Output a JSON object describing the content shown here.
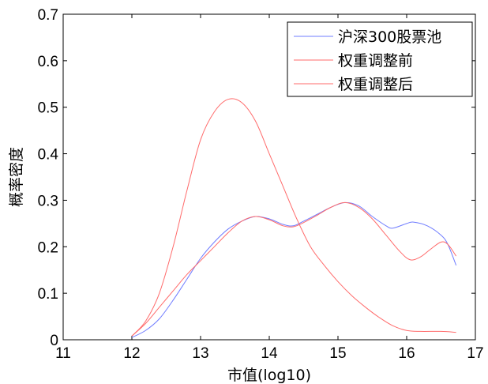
{
  "chart_data": {
    "type": "line",
    "title": "",
    "xlabel": "市值(log10)",
    "ylabel": "概率密度",
    "xlim": [
      11,
      17
    ],
    "ylim": [
      0,
      0.7
    ],
    "xticks": [
      "11",
      "12",
      "13",
      "14",
      "15",
      "16",
      "17"
    ],
    "yticks": [
      "0",
      "0.1",
      "0.2",
      "0.3",
      "0.4",
      "0.5",
      "0.6",
      "0.7"
    ],
    "grid": false,
    "legend_position": "top-right",
    "series": [
      {
        "name": "沪深300股票池",
        "color": "#6f7cff",
        "points": [
          [
            12.0,
            0.005
          ],
          [
            12.2,
            0.02
          ],
          [
            12.4,
            0.045
          ],
          [
            12.6,
            0.085
          ],
          [
            12.8,
            0.13
          ],
          [
            13.0,
            0.175
          ],
          [
            13.2,
            0.21
          ],
          [
            13.4,
            0.238
          ],
          [
            13.6,
            0.255
          ],
          [
            13.8,
            0.265
          ],
          [
            14.0,
            0.26
          ],
          [
            14.2,
            0.248
          ],
          [
            14.35,
            0.245
          ],
          [
            14.5,
            0.255
          ],
          [
            14.7,
            0.27
          ],
          [
            14.9,
            0.285
          ],
          [
            15.1,
            0.295
          ],
          [
            15.3,
            0.288
          ],
          [
            15.5,
            0.265
          ],
          [
            15.7,
            0.245
          ],
          [
            15.8,
            0.24
          ],
          [
            16.0,
            0.25
          ],
          [
            16.1,
            0.253
          ],
          [
            16.3,
            0.245
          ],
          [
            16.5,
            0.225
          ],
          [
            16.6,
            0.205
          ],
          [
            16.72,
            0.16
          ]
        ]
      },
      {
        "name": "权重调整前",
        "color": "#ff6b6b",
        "points": [
          [
            12.0,
            0.008
          ],
          [
            12.2,
            0.04
          ],
          [
            12.4,
            0.1
          ],
          [
            12.6,
            0.2
          ],
          [
            12.8,
            0.32
          ],
          [
            13.0,
            0.43
          ],
          [
            13.2,
            0.49
          ],
          [
            13.4,
            0.517
          ],
          [
            13.6,
            0.51
          ],
          [
            13.8,
            0.47
          ],
          [
            14.0,
            0.4
          ],
          [
            14.2,
            0.33
          ],
          [
            14.4,
            0.26
          ],
          [
            14.6,
            0.2
          ],
          [
            14.8,
            0.16
          ],
          [
            15.0,
            0.125
          ],
          [
            15.2,
            0.095
          ],
          [
            15.4,
            0.07
          ],
          [
            15.6,
            0.048
          ],
          [
            15.8,
            0.03
          ],
          [
            16.0,
            0.02
          ],
          [
            16.2,
            0.018
          ],
          [
            16.5,
            0.018
          ],
          [
            16.72,
            0.016
          ]
        ]
      },
      {
        "name": "权重调整后",
        "color": "#ff6b6b",
        "points": [
          [
            12.0,
            0.008
          ],
          [
            12.2,
            0.035
          ],
          [
            12.4,
            0.07
          ],
          [
            12.6,
            0.105
          ],
          [
            12.8,
            0.14
          ],
          [
            13.0,
            0.17
          ],
          [
            13.2,
            0.2
          ],
          [
            13.4,
            0.23
          ],
          [
            13.6,
            0.255
          ],
          [
            13.8,
            0.265
          ],
          [
            14.0,
            0.258
          ],
          [
            14.2,
            0.245
          ],
          [
            14.35,
            0.243
          ],
          [
            14.5,
            0.252
          ],
          [
            14.7,
            0.268
          ],
          [
            14.9,
            0.285
          ],
          [
            15.1,
            0.295
          ],
          [
            15.3,
            0.285
          ],
          [
            15.5,
            0.26
          ],
          [
            15.7,
            0.225
          ],
          [
            15.9,
            0.19
          ],
          [
            16.05,
            0.172
          ],
          [
            16.2,
            0.178
          ],
          [
            16.35,
            0.195
          ],
          [
            16.5,
            0.21
          ],
          [
            16.6,
            0.205
          ],
          [
            16.72,
            0.18
          ]
        ]
      }
    ]
  }
}
